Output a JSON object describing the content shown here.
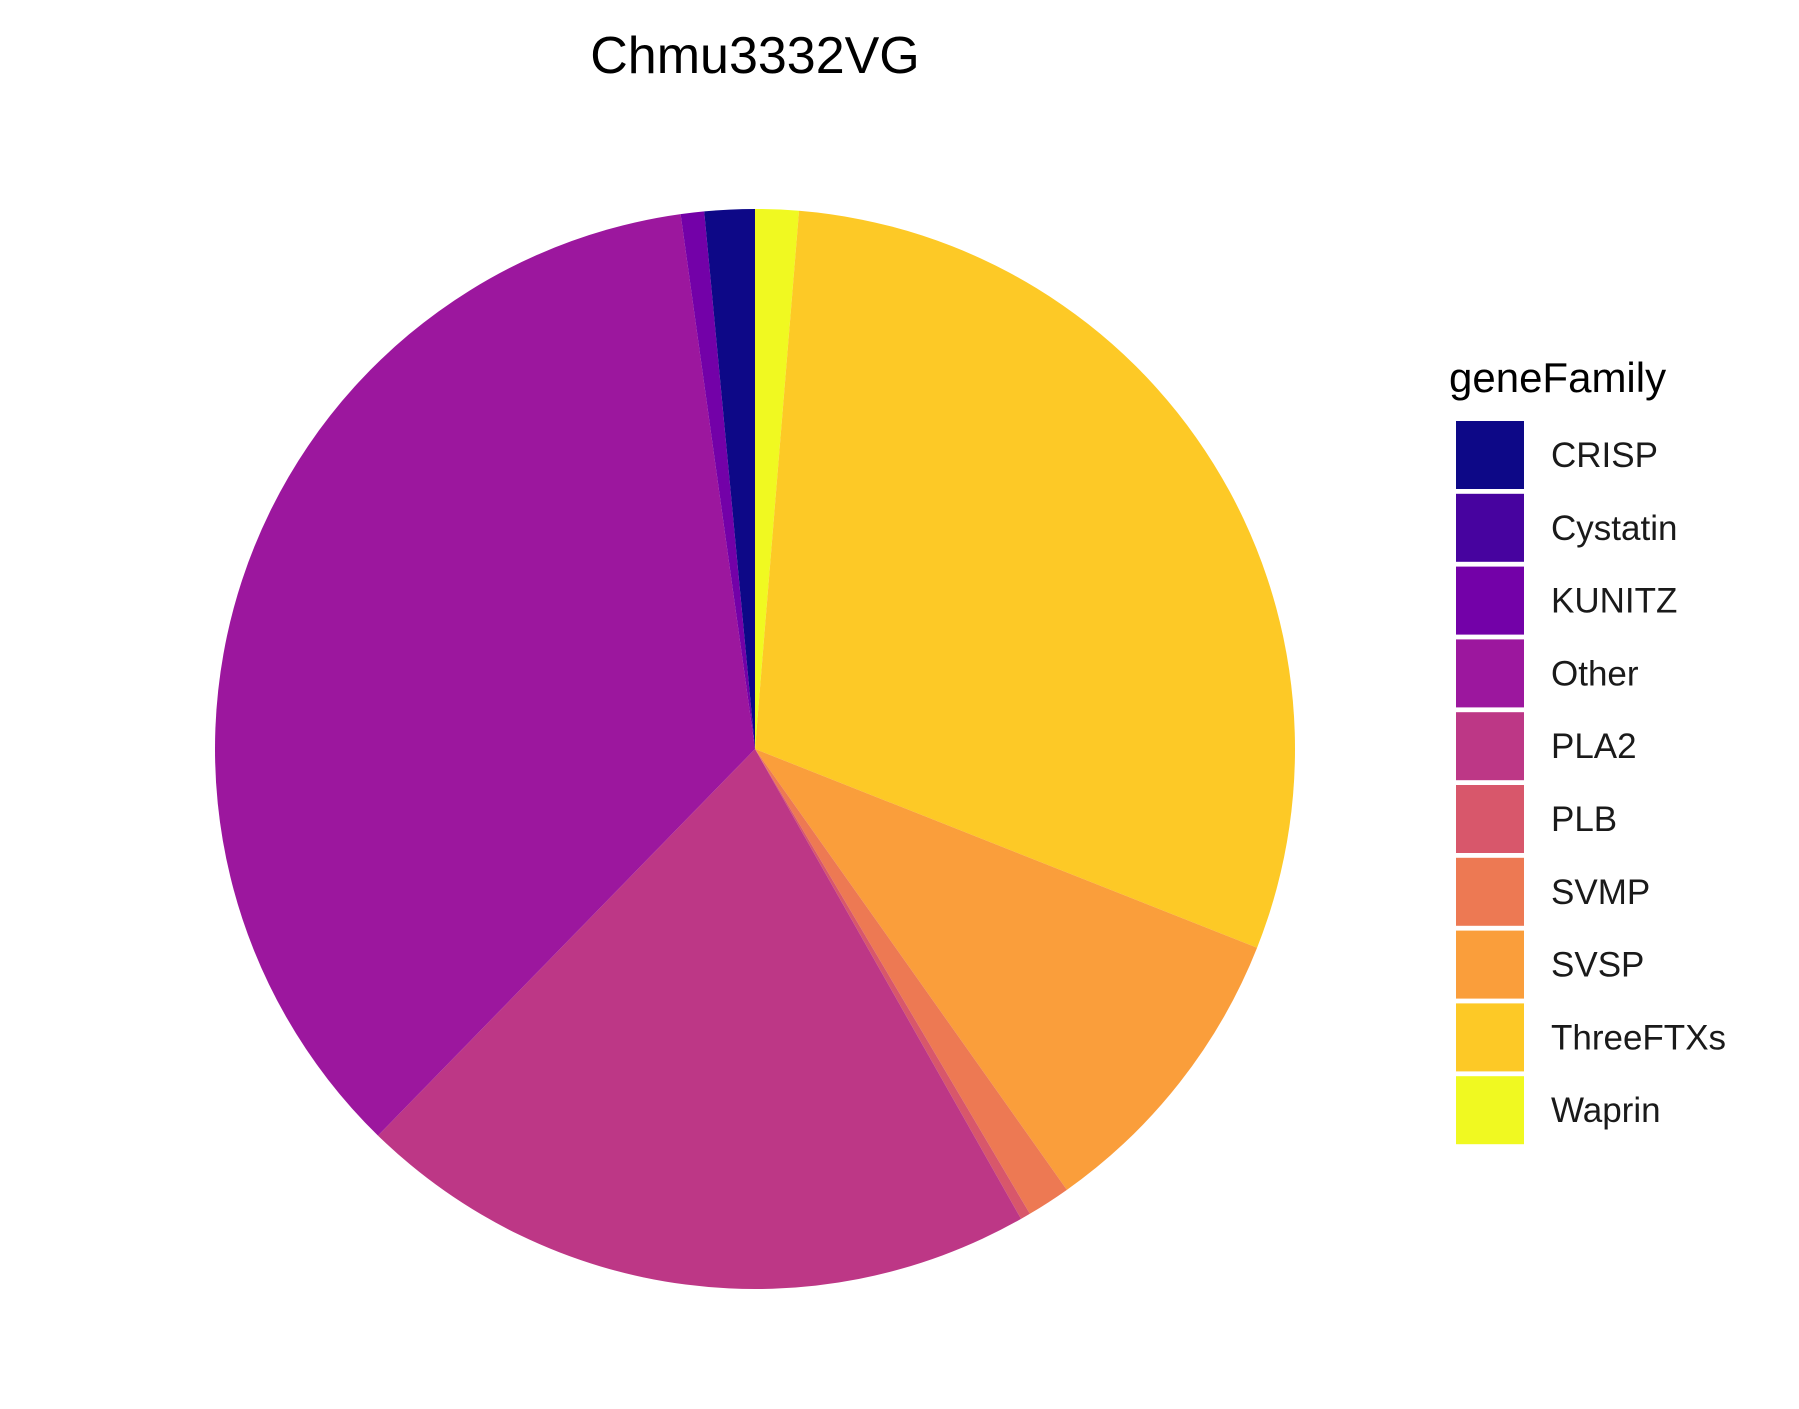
{
  "chart_data": {
    "type": "pie",
    "title": "Chmu3332VG",
    "legend": {
      "title": "geneFamily",
      "position": "right"
    },
    "direction": "clockwise-from-top",
    "slice_order": [
      "Waprin",
      "ThreeFTXs",
      "SVSP",
      "SVMP",
      "PLB",
      "PLA2",
      "Other",
      "KUNITZ",
      "Cystatin",
      "CRISP"
    ],
    "categories": [
      "CRISP",
      "Cystatin",
      "KUNITZ",
      "Other",
      "PLA2",
      "PLB",
      "SVMP",
      "SVSP",
      "ThreeFTXs",
      "Waprin"
    ],
    "values": [
      1.5,
      0.0,
      0.7,
      35.5,
      20.5,
      0.3,
      1.3,
      9.2,
      29.7,
      1.3
    ],
    "colors": [
      "#0D0887",
      "#47039F",
      "#7301A8",
      "#9C179E",
      "#BD3786",
      "#D8576B",
      "#ED7953",
      "#FA9E3B",
      "#FDC926",
      "#F0F921"
    ]
  }
}
